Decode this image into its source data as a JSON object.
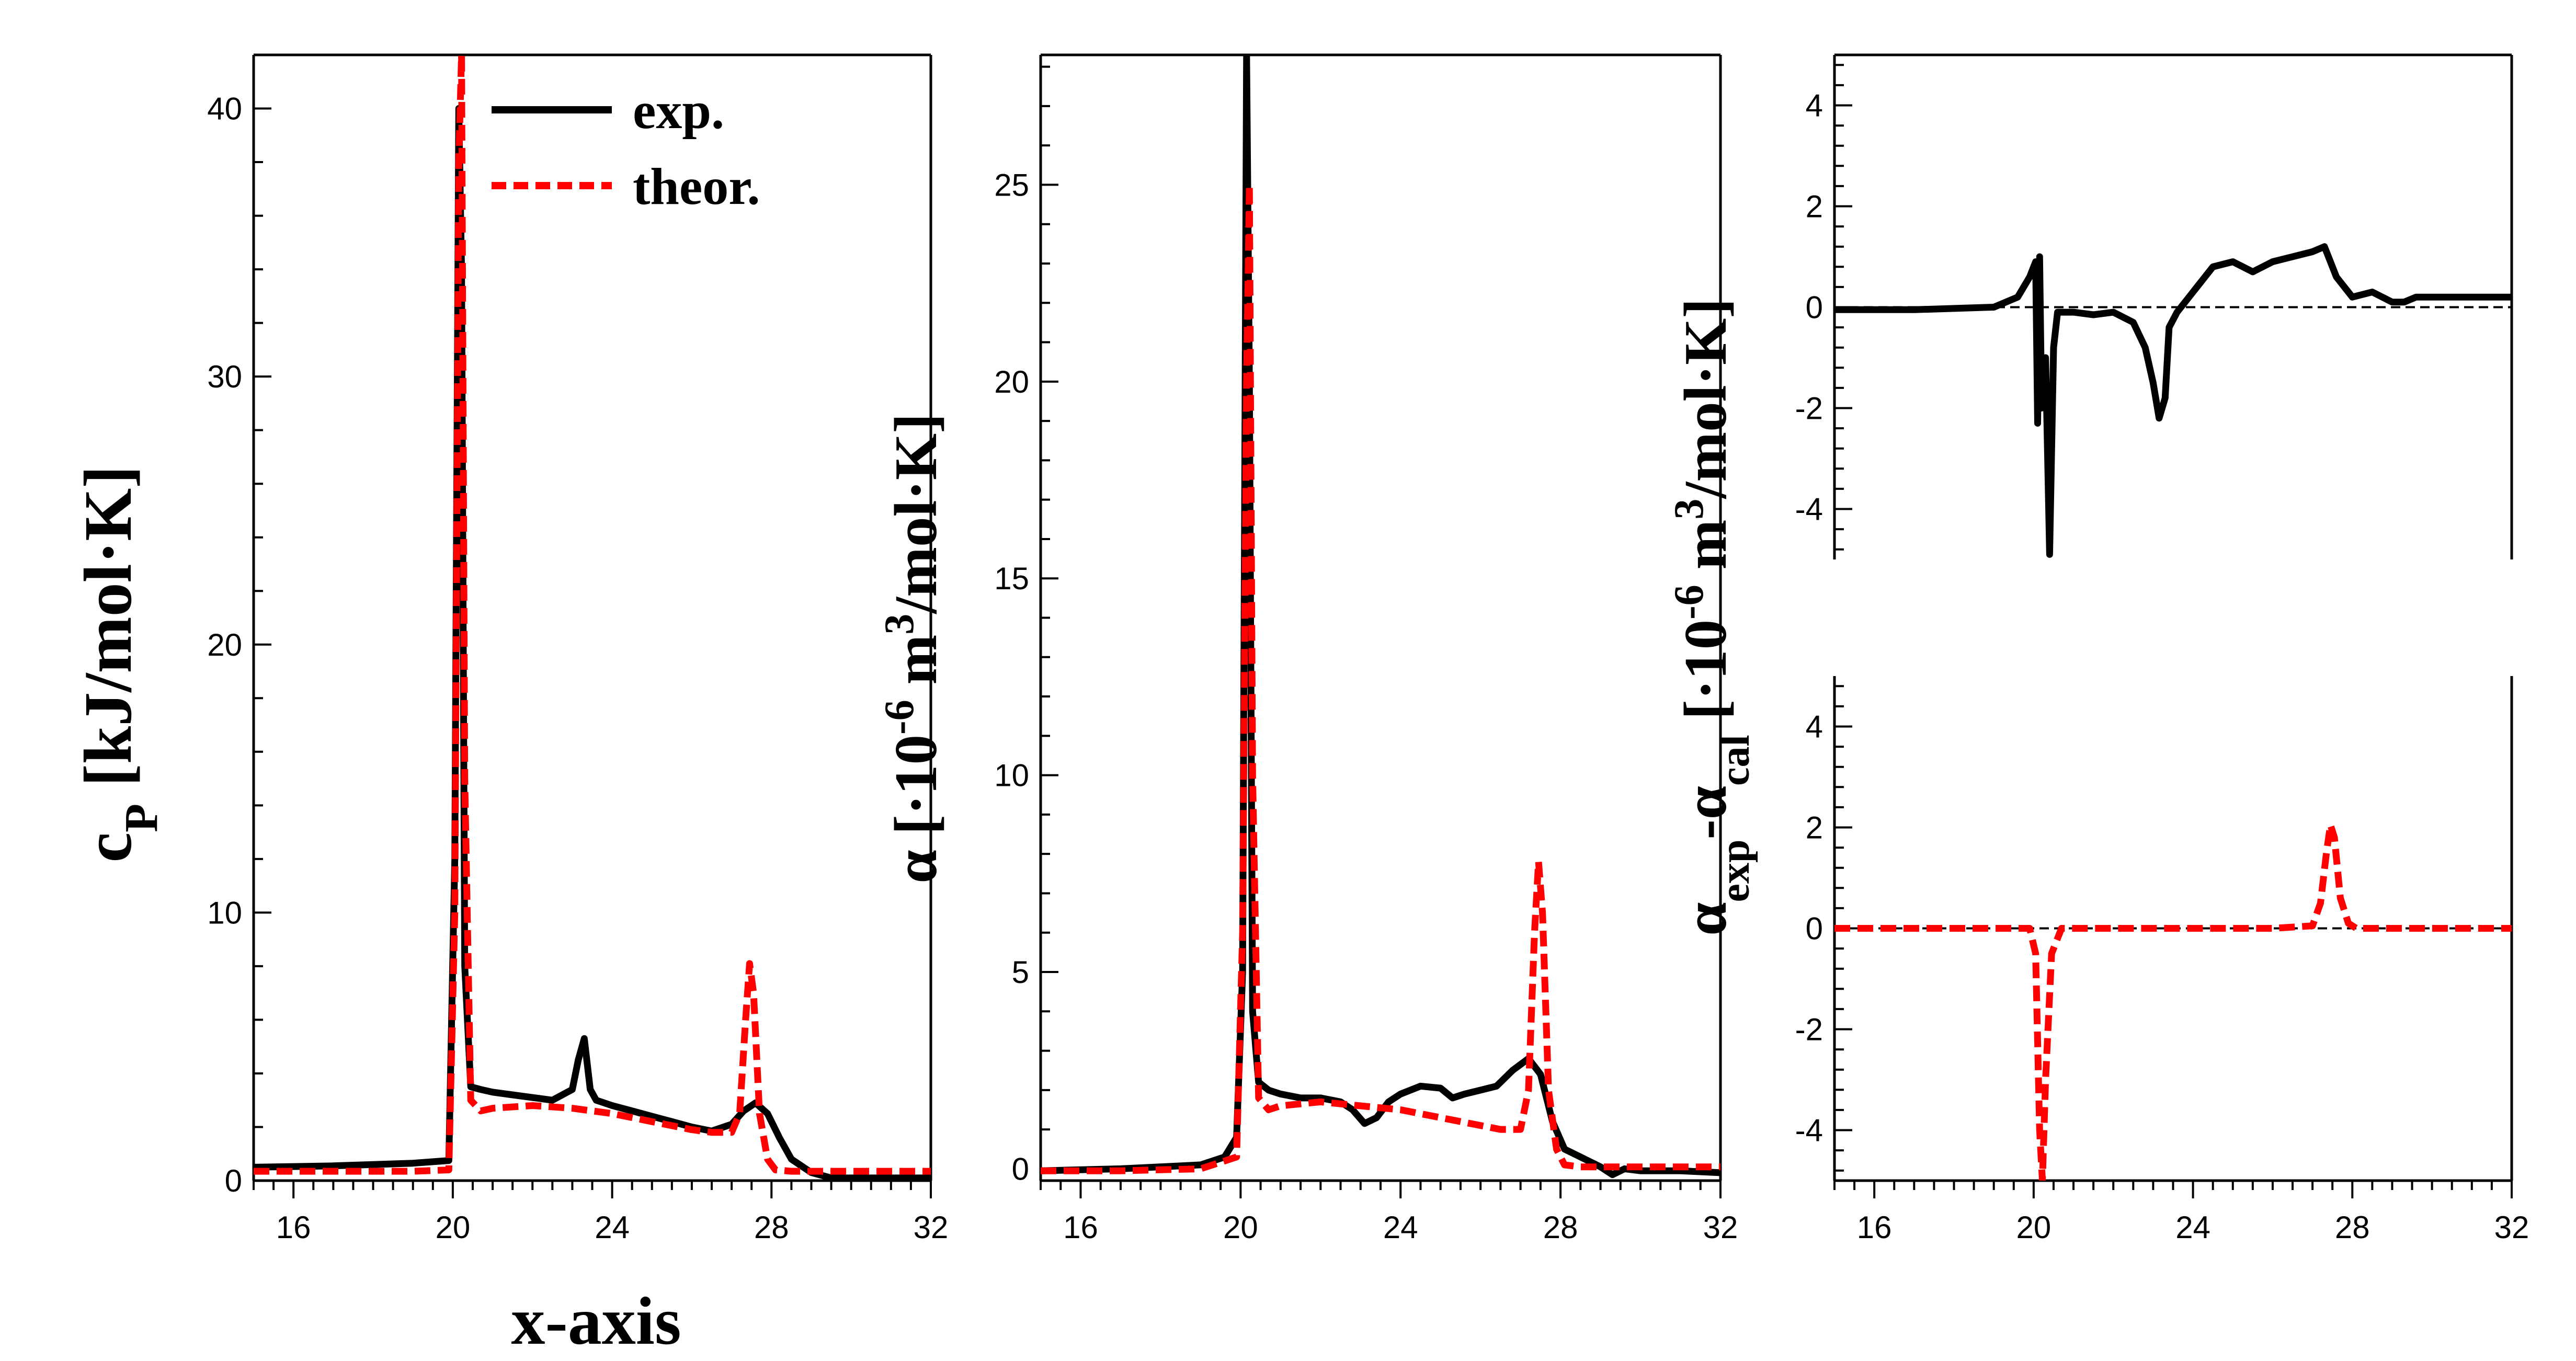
{
  "figure": {
    "xlabel": "x-axis"
  },
  "legend": {
    "entries": [
      {
        "label": "exp.",
        "color": "#000000",
        "style": "solid"
      },
      {
        "label": "theor.",
        "color": "#ff0000",
        "style": "dashed"
      }
    ]
  },
  "colors": {
    "exp": "#000000",
    "theor": "#ff0000"
  },
  "chart_data": [
    {
      "id": "cp",
      "type": "line",
      "ylabel_main": "c",
      "ylabel_sub": "P",
      "ylabel_rest": " [kJ/mol·K]",
      "xlim": [
        15,
        32
      ],
      "ylim": [
        0,
        42
      ],
      "xticks": [
        16,
        20,
        24,
        28,
        32
      ],
      "yticks": [
        0,
        10,
        20,
        30,
        40
      ],
      "series": [
        {
          "name": "exp.",
          "color": "#000000",
          "dash": false,
          "x": [
            15,
            17,
            19,
            19.9,
            20.05,
            20.15,
            20.22,
            20.3,
            20.45,
            20.7,
            21,
            21.5,
            22,
            22.5,
            23,
            23.15,
            23.3,
            23.45,
            23.6,
            24,
            24.5,
            25,
            25.5,
            26,
            26.5,
            27,
            27.3,
            27.6,
            27.9,
            28.2,
            28.5,
            29,
            29.5,
            30,
            31,
            32
          ],
          "y": [
            0.5,
            0.55,
            0.65,
            0.75,
            12,
            40,
            34,
            8,
            3.5,
            3.4,
            3.3,
            3.2,
            3.1,
            3,
            3.4,
            4.5,
            5.3,
            3.4,
            3,
            2.8,
            2.6,
            2.4,
            2.2,
            2,
            1.85,
            2.1,
            2.6,
            2.9,
            2.5,
            1.6,
            0.8,
            0.3,
            0.1,
            0.1,
            0.1,
            0.1
          ]
        },
        {
          "name": "theor.",
          "color": "#ff0000",
          "dash": true,
          "x": [
            15,
            17,
            19,
            19.9,
            20.05,
            20.15,
            20.22,
            20.3,
            20.45,
            20.7,
            21,
            22,
            23,
            24,
            25,
            26,
            26.5,
            27,
            27.2,
            27.35,
            27.45,
            27.55,
            27.7,
            27.9,
            28.1,
            28.5,
            30,
            32
          ],
          "y": [
            0.35,
            0.35,
            0.35,
            0.4,
            10,
            38,
            42,
            15,
            3,
            2.6,
            2.7,
            2.8,
            2.7,
            2.5,
            2.2,
            1.9,
            1.8,
            1.8,
            2.5,
            6,
            8.1,
            7,
            2.5,
            0.8,
            0.4,
            0.35,
            0.35,
            0.35
          ]
        }
      ]
    },
    {
      "id": "alpha",
      "type": "line",
      "ylabel_main": "α",
      "ylabel_rest": " [·10",
      "ylabel_sup1": "-6",
      "ylabel_rest2": " m",
      "ylabel_sup2": "3",
      "ylabel_rest3": "/mol·K]",
      "xlim": [
        15,
        32
      ],
      "ylim": [
        -0.3,
        28.3
      ],
      "xticks": [
        16,
        20,
        24,
        28,
        32
      ],
      "yticks": [
        0,
        5,
        10,
        15,
        20,
        25
      ],
      "series": [
        {
          "name": "exp.",
          "color": "#000000",
          "dash": false,
          "x": [
            15,
            17,
            19,
            19.6,
            19.9,
            20.05,
            20.15,
            20.22,
            20.3,
            20.45,
            20.7,
            21,
            21.5,
            22,
            22.5,
            22.8,
            23.1,
            23.4,
            23.7,
            24,
            24.5,
            25,
            25.3,
            25.6,
            26,
            26.4,
            26.8,
            27.2,
            27.5,
            27.8,
            28.1,
            28.5,
            29,
            29.3,
            29.6,
            30,
            31,
            32
          ],
          "y": [
            -0.05,
            0,
            0.1,
            0.3,
            0.8,
            5,
            28.3,
            20,
            4,
            2.2,
            2,
            1.9,
            1.8,
            1.8,
            1.7,
            1.5,
            1.15,
            1.3,
            1.7,
            1.9,
            2.1,
            2.05,
            1.8,
            1.9,
            2,
            2.1,
            2.5,
            2.8,
            2.4,
            1.2,
            0.5,
            0.3,
            0.05,
            -0.15,
            0,
            -0.05,
            -0.05,
            -0.1
          ]
        },
        {
          "name": "theor.",
          "color": "#ff0000",
          "dash": true,
          "x": [
            15,
            17,
            19,
            19.9,
            20.05,
            20.15,
            20.22,
            20.3,
            20.45,
            20.7,
            21,
            22,
            23,
            24,
            25,
            26,
            26.5,
            27,
            27.2,
            27.35,
            27.45,
            27.55,
            27.7,
            27.9,
            28.1,
            28.5,
            30,
            32
          ],
          "y": [
            -0.05,
            -0.05,
            0,
            0.3,
            6,
            20,
            25,
            10,
            1.8,
            1.5,
            1.6,
            1.7,
            1.6,
            1.5,
            1.3,
            1.1,
            1,
            1,
            2,
            6,
            7.8,
            6.5,
            2,
            0.5,
            0.1,
            0.05,
            0.05,
            0.05
          ]
        }
      ]
    },
    {
      "id": "residual-exp",
      "type": "line",
      "xlim": [
        15,
        32
      ],
      "ylim": [
        -5,
        5
      ],
      "yticks": [
        -4,
        -2,
        0,
        2,
        4
      ],
      "zero_line": true,
      "series": [
        {
          "name": "exp.",
          "color": "#000000",
          "dash": false,
          "x": [
            15,
            17,
            19,
            19.6,
            19.9,
            20.05,
            20.1,
            20.15,
            20.2,
            20.3,
            20.4,
            20.5,
            20.6,
            20.8,
            21,
            21.5,
            22,
            22.5,
            22.8,
            23,
            23.15,
            23.3,
            23.4,
            23.6,
            24,
            24.5,
            25,
            25.5,
            26,
            26.5,
            27,
            27.3,
            27.6,
            28,
            28.5,
            29,
            29.3,
            29.6,
            30,
            31,
            32
          ],
          "y": [
            -0.05,
            -0.05,
            0,
            0.2,
            0.6,
            0.9,
            -2.3,
            1,
            -2,
            -1,
            -4.9,
            -0.8,
            -0.1,
            -0.1,
            -0.1,
            -0.15,
            -0.1,
            -0.3,
            -0.8,
            -1.5,
            -2.2,
            -1.8,
            -0.4,
            -0.1,
            0.3,
            0.8,
            0.9,
            0.7,
            0.9,
            1,
            1.1,
            1.2,
            0.6,
            0.2,
            0.3,
            0.1,
            0.1,
            0.2,
            0.2,
            0.2,
            0.2
          ]
        }
      ]
    },
    {
      "id": "residual-theor",
      "type": "line",
      "xlim": [
        15,
        32
      ],
      "ylim": [
        -5,
        5
      ],
      "xticks": [
        16,
        20,
        24,
        28,
        32
      ],
      "yticks": [
        -4,
        -2,
        0,
        2,
        4
      ],
      "zero_line": true,
      "ylabel_main": "α",
      "ylabel_sub1": "exp",
      "ylabel_mid": "-α",
      "ylabel_sub2": "cal",
      "ylabel_rest": " [·10",
      "ylabel_sup1": "-6",
      "ylabel_rest2": " m",
      "ylabel_sup2": "3",
      "ylabel_rest3": "/mol·K]",
      "series": [
        {
          "name": "theor.",
          "color": "#ff0000",
          "dash": true,
          "x": [
            15,
            17,
            19,
            19.9,
            20.05,
            20.15,
            20.22,
            20.3,
            20.45,
            20.7,
            21,
            22,
            23,
            24,
            25,
            26,
            27,
            27.2,
            27.35,
            27.45,
            27.55,
            27.7,
            27.9,
            28.1,
            29,
            30,
            32
          ],
          "y": [
            0,
            0,
            0,
            0,
            -0.5,
            -4,
            -5,
            -3,
            -0.5,
            0,
            0,
            0,
            0,
            0,
            0,
            0,
            0.05,
            0.5,
            1.5,
            2.05,
            1.8,
            0.6,
            0.1,
            0,
            0,
            0,
            0
          ]
        }
      ]
    }
  ]
}
